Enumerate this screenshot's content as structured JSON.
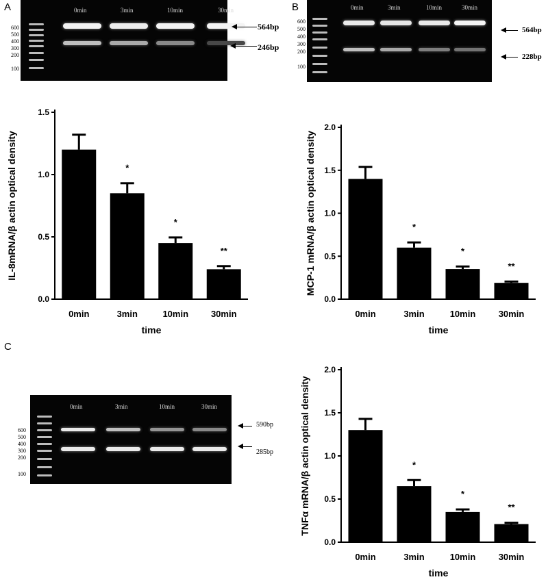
{
  "panels": {
    "a": {
      "letter": "A"
    },
    "b": {
      "letter": "B"
    },
    "c": {
      "letter": "C"
    }
  },
  "gels": {
    "a": {
      "lanes": [
        "0min",
        "3min",
        "10min",
        "30min"
      ],
      "ladder": [
        "600",
        "500",
        "400",
        "300",
        "200",
        "100"
      ],
      "arrows": [
        "564bp",
        "246bp"
      ],
      "upper_band_intensity": [
        0.95,
        0.92,
        0.95,
        0.95
      ],
      "lower_band_intensity": [
        0.7,
        0.6,
        0.45,
        0.15
      ]
    },
    "b": {
      "lanes": [
        "0min",
        "3min",
        "10min",
        "30min"
      ],
      "ladder": [
        "600",
        "500",
        "400",
        "300",
        "200",
        "100"
      ],
      "arrows": [
        "564bp",
        "228bp"
      ],
      "upper_band_intensity": [
        0.9,
        0.88,
        0.9,
        0.95
      ],
      "lower_band_intensity": [
        0.7,
        0.6,
        0.4,
        0.35
      ]
    },
    "c": {
      "lanes": [
        "0min",
        "3min",
        "10min",
        "30min"
      ],
      "ladder": [
        "600",
        "500",
        "400",
        "300",
        "200",
        "100"
      ],
      "arrows": [
        "590bp",
        "285bp"
      ],
      "upper_band_intensity": [
        0.9,
        0.7,
        0.5,
        0.45
      ],
      "lower_band_intensity": [
        0.9,
        0.9,
        0.9,
        0.9
      ]
    }
  },
  "chart_data": [
    {
      "type": "bar",
      "categories": [
        "0min",
        "3min",
        "10min",
        "30min"
      ],
      "values": [
        1.2,
        0.85,
        0.45,
        0.24
      ],
      "errors": [
        0.12,
        0.08,
        0.045,
        0.025
      ],
      "annotations": [
        "",
        "*",
        "*",
        "**"
      ],
      "xlabel": "time",
      "ylabel": "IL-8mRNA/β actin optical density",
      "yticks": [
        "0.0",
        "0.5",
        "1.0",
        "1.5"
      ],
      "ylim": [
        0,
        1.5
      ],
      "bar_color": "#000000"
    },
    {
      "type": "bar",
      "categories": [
        "0min",
        "3min",
        "10min",
        "30min"
      ],
      "values": [
        1.4,
        0.6,
        0.35,
        0.19
      ],
      "errors": [
        0.14,
        0.06,
        0.03,
        0.015
      ],
      "annotations": [
        "",
        "*",
        "*",
        "**"
      ],
      "xlabel": "time",
      "ylabel": "MCP-1 mRNA/β actin optical density",
      "yticks": [
        "0.0",
        "0.5",
        "1.0",
        "1.5",
        "2.0"
      ],
      "ylim": [
        0,
        2.0
      ],
      "bar_color": "#000000"
    },
    {
      "type": "bar",
      "categories": [
        "0min",
        "3min",
        "10min",
        "30min"
      ],
      "values": [
        1.3,
        0.65,
        0.35,
        0.21
      ],
      "errors": [
        0.13,
        0.07,
        0.03,
        0.015
      ],
      "annotations": [
        "",
        "*",
        "*",
        "**"
      ],
      "xlabel": "time",
      "ylabel": "TNFα mRNA/β actin optical density",
      "yticks": [
        "0.0",
        "0.5",
        "1.0",
        "1.5",
        "2.0"
      ],
      "ylim": [
        0,
        2.0
      ],
      "bar_color": "#000000"
    }
  ]
}
